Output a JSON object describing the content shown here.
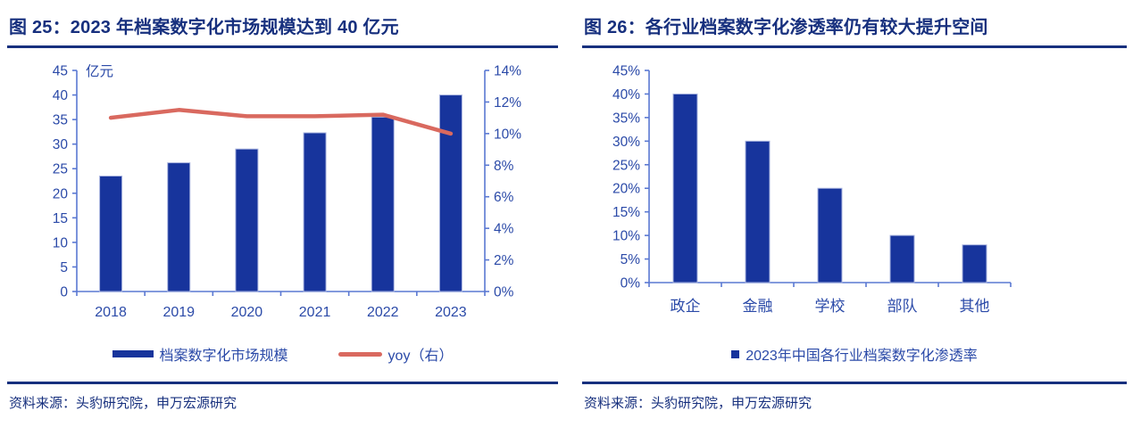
{
  "colors": {
    "navy": "#17307E",
    "axis_line": "#5A78D2",
    "tick_label": "#2B4AA8",
    "bar_fill": "#17349C",
    "bar_edge": "#A9B4DF",
    "line_red": "#D9695F"
  },
  "figures": [
    {
      "title": "图 25：2023 年档案数字化市场规模达到 40 亿元",
      "source": "资料来源：头豹研究院，申万宏源研究"
    },
    {
      "title": "图 26：各行业档案数字化渗透率仍有较大提升空间",
      "source": "资料来源：头豹研究院，申万宏源研究"
    }
  ],
  "chart_data": [
    {
      "type": "bar+line",
      "title": "2023 年档案数字化市场规模达到 40 亿元",
      "unit_label": "亿元",
      "categories": [
        "2018",
        "2019",
        "2020",
        "2021",
        "2022",
        "2023"
      ],
      "series": [
        {
          "name": "档案数字化市场规模",
          "type": "bar",
          "axis": "left",
          "values": [
            23.5,
            26.2,
            29,
            32.3,
            35.5,
            40
          ]
        },
        {
          "name": "yoy（右）",
          "type": "line",
          "axis": "right",
          "values": [
            11,
            11.5,
            11.1,
            11.1,
            11.2,
            10
          ]
        }
      ],
      "left_axis": {
        "min": 0,
        "max": 45,
        "step": 5,
        "tick_labels": [
          "0",
          "5",
          "10",
          "15",
          "20",
          "25",
          "30",
          "35",
          "40",
          "45"
        ]
      },
      "right_axis": {
        "min": 0,
        "max": 14,
        "step": 2,
        "tick_labels": [
          "0%",
          "2%",
          "4%",
          "6%",
          "8%",
          "10%",
          "12%",
          "14%"
        ]
      },
      "grid": false,
      "legend_position": "bottom"
    },
    {
      "type": "bar",
      "title": "各行业档案数字化渗透率仍有较大提升空间",
      "categories": [
        "政企",
        "金融",
        "学校",
        "部队",
        "其他"
      ],
      "values": [
        40,
        30,
        20,
        10,
        8
      ],
      "legend_label": "2023年中国各行业档案数字化渗透率",
      "y_axis": {
        "min": 0,
        "max": 45,
        "step": 5,
        "tick_labels": [
          "0%",
          "5%",
          "10%",
          "15%",
          "20%",
          "25%",
          "30%",
          "35%",
          "40%",
          "45%"
        ]
      },
      "grid": false,
      "legend_position": "bottom"
    }
  ]
}
